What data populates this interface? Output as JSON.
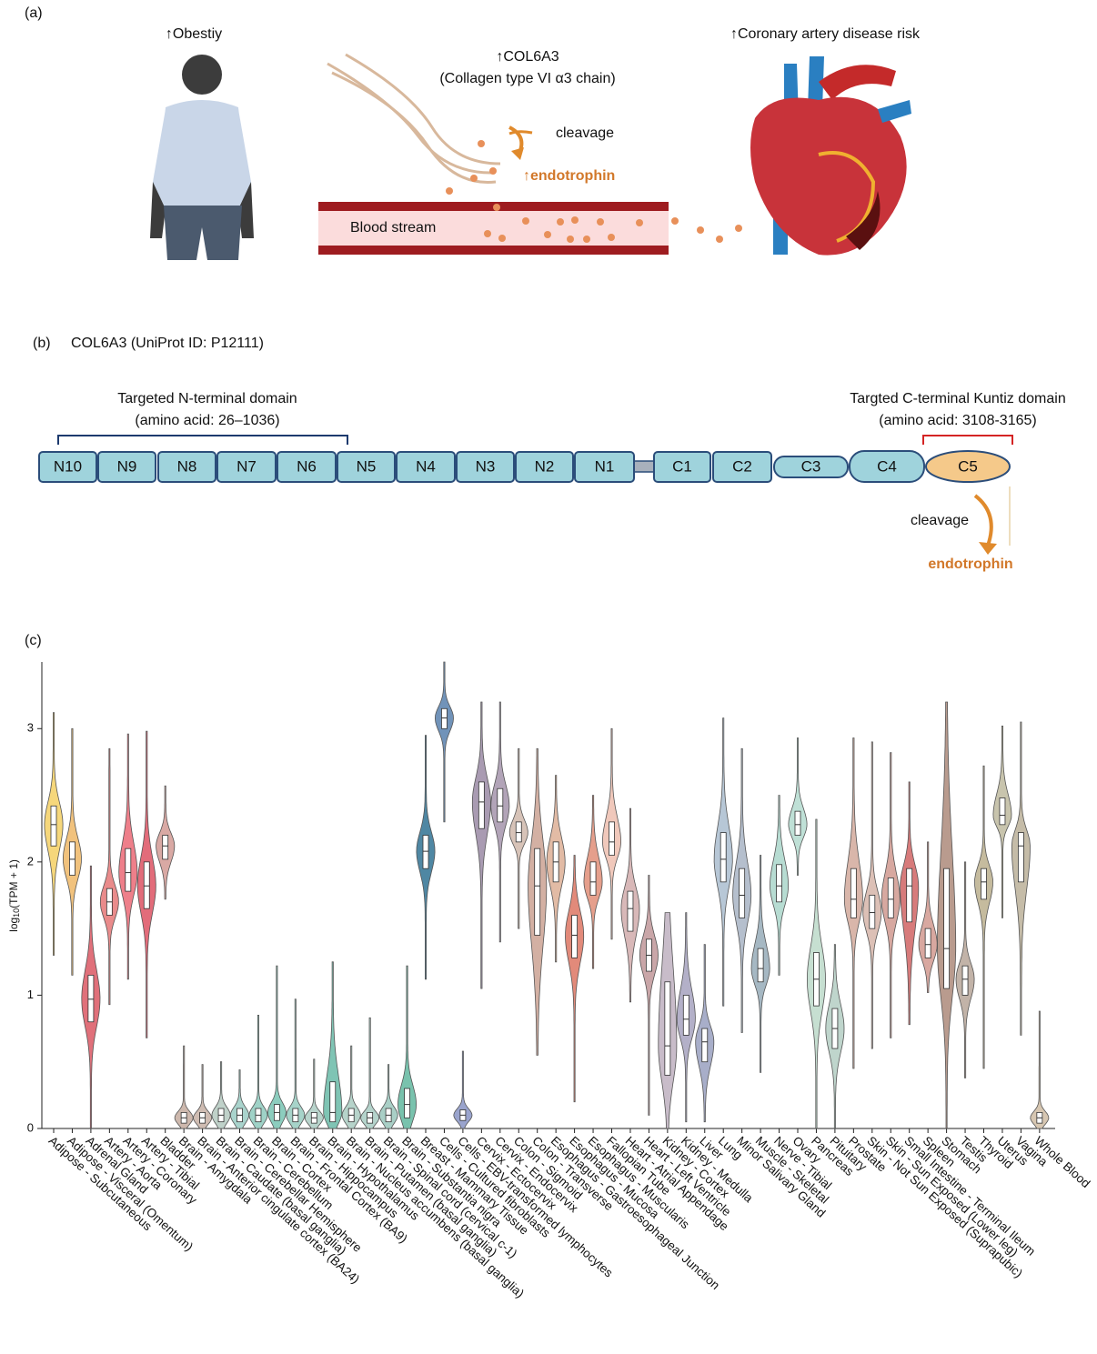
{
  "panel_a": {
    "label": "(a)",
    "obesity": "↑Obestiy",
    "protein": "↑COL6A3",
    "protein_full": "(Collagen type VI α3 chain)",
    "cleavage": "cleavage",
    "product": "↑endotrophin",
    "vessel": "Blood stream",
    "outcome": "↑Coronary artery disease risk"
  },
  "panel_b": {
    "label": "(b)",
    "title": "COL6A3 (UniProt ID: P12111)",
    "n_domain_title": "Targeted N-terminal domain",
    "n_domain_range": "(amino acid: 26–1036)",
    "c_domain_title": "Targted C-terminal Kuntiz domain",
    "c_domain_range": "(amino acid: 3108-3165)",
    "domains": [
      "N10",
      "N9",
      "N8",
      "N7",
      "N6",
      "N5",
      "N4",
      "N3",
      "N2",
      "N1",
      "C1",
      "C2",
      "C3",
      "C4",
      "C5"
    ],
    "cleavage": "cleavage",
    "product": "endotrophin"
  },
  "chart_data": {
    "type": "violin",
    "panel_label": "(c)",
    "ylabel": {
      "base": "log",
      "subscript": "10",
      "rest": "(TPM + 1)"
    },
    "ylim": [
      0,
      3.5
    ],
    "yticks": [
      0,
      1,
      2,
      3
    ],
    "categories": [
      "Adipose - Subcutaneous",
      "Adipose - Visceral (Omentum)",
      "Adrenal Gland",
      "Artery - Aorta",
      "Artery - Coronary",
      "Artery - Tibial",
      "Bladder",
      "Brain - Amygdala",
      "Brain - Anterior cingulate cortex (BA24)",
      "Brain - Caudate (basal ganglia)",
      "Brain - Cerebellar Hemisphere",
      "Brain - Cerebellum",
      "Brain - Cortex",
      "Brain - Frontal Cortex (BA9)",
      "Brain - Hippocampus",
      "Brain - Hypothalamus",
      "Brain - Nucleus accumbens (basal ganglia)",
      "Brain - Putamen (basal ganglia)",
      "Brain - Spinal cord (cervical c-1)",
      "Brain - Substantia nigra",
      "Breast - Mammary Tissue",
      "Cells - Cultured fibroblasts",
      "Cells - EBV-transformed lymphocytes",
      "Cervix - Ectocervix",
      "Cervix - Endocervix",
      "Colon - Sigmoid",
      "Colon - Transverse",
      "Esophagus - Gastroesophageal Junction",
      "Esophagus - Mucosa",
      "Esophagus - Muscularis",
      "Fallopian Tube",
      "Heart - Atrial Appendage",
      "Heart - Left Ventricle",
      "Kidney - Cortex",
      "Kidney - Medulla",
      "Liver",
      "Lung",
      "Minor Salivary Gland",
      "Muscle - Skeletal",
      "Nerve - Tibial",
      "Ovary",
      "Pancreas",
      "Pituitary",
      "Prostate",
      "Skin - Not Sun Exposed (Suprapubic)",
      "Skin - Sun Exposed (Lower leg)",
      "Small Intestine - Terminal Ileum",
      "Spleen",
      "Stomach",
      "Testis",
      "Thyroid",
      "Uterus",
      "Vagina",
      "Whole Blood"
    ],
    "medians": [
      2.28,
      2.02,
      0.97,
      1.7,
      1.92,
      1.82,
      2.12,
      0.08,
      0.08,
      0.1,
      0.1,
      0.1,
      0.12,
      0.1,
      0.08,
      0.12,
      0.1,
      0.08,
      0.1,
      0.18,
      2.08,
      3.08,
      0.1,
      2.45,
      2.42,
      2.22,
      1.82,
      2.0,
      1.45,
      1.85,
      2.15,
      1.65,
      1.3,
      0.62,
      0.82,
      0.65,
      2.02,
      1.75,
      1.2,
      1.82,
      2.28,
      1.12,
      0.75,
      1.72,
      1.62,
      1.72,
      1.82,
      1.38,
      1.35,
      1.12,
      1.85,
      2.35,
      2.12,
      0.08
    ],
    "q1": [
      2.12,
      1.9,
      0.8,
      1.6,
      1.78,
      1.65,
      2.02,
      0.04,
      0.04,
      0.05,
      0.05,
      0.05,
      0.06,
      0.05,
      0.04,
      0.05,
      0.05,
      0.04,
      0.05,
      0.08,
      1.95,
      3.0,
      0.06,
      2.25,
      2.3,
      2.15,
      1.45,
      1.85,
      1.28,
      1.75,
      2.05,
      1.48,
      1.18,
      0.4,
      0.7,
      0.5,
      1.85,
      1.58,
      1.1,
      1.7,
      2.2,
      0.92,
      0.6,
      1.58,
      1.5,
      1.58,
      1.55,
      1.28,
      1.05,
      1.0,
      1.72,
      2.28,
      1.85,
      0.04
    ],
    "q3": [
      2.42,
      2.15,
      1.15,
      1.8,
      2.1,
      2.0,
      2.2,
      0.12,
      0.12,
      0.15,
      0.15,
      0.15,
      0.18,
      0.15,
      0.12,
      0.35,
      0.15,
      0.12,
      0.15,
      0.3,
      2.2,
      3.15,
      0.14,
      2.6,
      2.55,
      2.3,
      2.1,
      2.15,
      1.6,
      2.0,
      2.3,
      1.78,
      1.42,
      1.1,
      1.0,
      0.75,
      2.22,
      1.95,
      1.35,
      1.98,
      2.38,
      1.32,
      0.9,
      1.95,
      1.75,
      1.88,
      1.95,
      1.5,
      1.95,
      1.22,
      1.95,
      2.48,
      2.22,
      0.12
    ],
    "mins": [
      1.3,
      1.15,
      0,
      0.93,
      1.12,
      0.68,
      1.72,
      0,
      0,
      0,
      0,
      0,
      0,
      0,
      0,
      0,
      0,
      0,
      0,
      0,
      1.12,
      2.3,
      0,
      1.05,
      1.4,
      1.5,
      0.55,
      1.25,
      0.2,
      1.2,
      1.42,
      0.95,
      0.1,
      0,
      0.05,
      0.05,
      0.92,
      0.72,
      0.42,
      1.15,
      1.9,
      0,
      0,
      0.45,
      0.6,
      0.68,
      0.78,
      1.02,
      0,
      0.38,
      0.45,
      1.58,
      0.7,
      0
    ],
    "maxs": [
      3.12,
      3.0,
      1.97,
      2.85,
      2.96,
      2.98,
      2.57,
      0.62,
      0.48,
      0.5,
      0.44,
      0.85,
      1.22,
      0.97,
      0.52,
      1.25,
      0.62,
      0.83,
      0.48,
      1.22,
      2.95,
      3.5,
      0.58,
      3.2,
      3.2,
      2.85,
      2.85,
      2.65,
      2.05,
      2.5,
      3.0,
      2.4,
      1.9,
      1.62,
      1.62,
      1.38,
      3.08,
      2.85,
      2.05,
      2.5,
      2.93,
      2.32,
      1.38,
      2.93,
      2.9,
      2.82,
      2.6,
      2.15,
      3.2,
      2.0,
      2.72,
      3.02,
      3.05,
      0.88
    ],
    "colors": [
      "#f6d77b",
      "#f1c27d",
      "#e0707a",
      "#e98b8b",
      "#ee7f8a",
      "#e26c7a",
      "#d9a9a4",
      "#cdb8ad",
      "#cfbcb2",
      "#bfd1c9",
      "#a9d3cc",
      "#9fd2c7",
      "#8ccdbe",
      "#a6d3c9",
      "#b8d4cc",
      "#7fc4b4",
      "#b6d3ca",
      "#b4d3cb",
      "#a9cfc6",
      "#79c2ad",
      "#4f87a3",
      "#7193b9",
      "#9aa4cd",
      "#a99bb2",
      "#b2a4b8",
      "#d7c3b8",
      "#d3b0a3",
      "#e2bba5",
      "#e28a7a",
      "#e59f8c",
      "#f0c8bb",
      "#d8b8b8",
      "#c9a6a8",
      "#c8bcc9",
      "#b3b0c8",
      "#a8aec9",
      "#b7c7d6",
      "#b5bfcd",
      "#a6b8c3",
      "#b7dcd2",
      "#bfe0d6",
      "#c6dfd1",
      "#bfd5cc",
      "#d9b6aa",
      "#dcc0b6",
      "#d7a8a0",
      "#d77b7b",
      "#d8a8a0",
      "#b99b8e",
      "#c2b3a8",
      "#c5bb9e",
      "#c8c4ad",
      "#c5bca8",
      "#d6c6b1"
    ]
  }
}
